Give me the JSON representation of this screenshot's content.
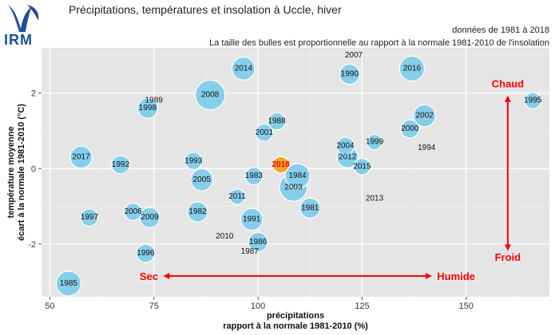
{
  "header": {
    "logo_text": "IRM",
    "title": "Précipitations, températures et insolation à Uccle, hiver",
    "subtitle_period": "données de 1981 à 2018",
    "subtitle_note": "La taille des bulles est proportionnelle au rapport à la normale 1981-2010 de l'insolation"
  },
  "colors": {
    "bubble": "#87ceeb",
    "highlight": "#f5a623",
    "annotation": "#ff0000",
    "panel": "#e5e5e5",
    "logo": "#1f4e9a"
  },
  "chart_data": {
    "type": "scatter",
    "xlabel": [
      "précipitations",
      "rapport à la normale 1981-2010 (%)"
    ],
    "ylabel": [
      "température moyenne",
      "écart à la normale 1981-2010 (°C)"
    ],
    "xlim": [
      48,
      170
    ],
    "ylim": [
      -3.4,
      3.2
    ],
    "xticks": [
      50,
      75,
      100,
      125,
      150
    ],
    "yticks": [
      -2,
      0,
      2
    ],
    "grid": true,
    "highlight_year": "2018",
    "points": [
      {
        "year": "1981",
        "x": 112.5,
        "y": -1.05,
        "size": 1.05
      },
      {
        "year": "1982",
        "x": 85.5,
        "y": -1.15,
        "size": 1.05
      },
      {
        "year": "1983",
        "x": 99,
        "y": -0.2,
        "size": 0.9
      },
      {
        "year": "1984",
        "x": 109.5,
        "y": -0.2,
        "size": 1.3
      },
      {
        "year": "1985",
        "x": 54.5,
        "y": -3.05,
        "size": 1.3
      },
      {
        "year": "1986",
        "x": 100,
        "y": -1.95,
        "size": 1.0
      },
      {
        "year": "1987",
        "x": 98,
        "y": -2.2,
        "size": 0.1
      },
      {
        "year": "1988",
        "x": 104.5,
        "y": 1.25,
        "size": 0.9
      },
      {
        "year": "1989",
        "x": 75,
        "y": 1.8,
        "size": 0.1
      },
      {
        "year": "1990",
        "x": 122,
        "y": 2.5,
        "size": 1.05
      },
      {
        "year": "1991",
        "x": 98.5,
        "y": -1.35,
        "size": 1.15
      },
      {
        "year": "1992",
        "x": 67,
        "y": 0.1,
        "size": 0.95
      },
      {
        "year": "1993",
        "x": 84.5,
        "y": 0.2,
        "size": 0.9
      },
      {
        "year": "1994",
        "x": 140.5,
        "y": 0.55,
        "size": 0.1
      },
      {
        "year": "1995",
        "x": 166,
        "y": 1.8,
        "size": 0.85
      },
      {
        "year": "1996",
        "x": 73,
        "y": -2.25,
        "size": 0.95
      },
      {
        "year": "1997",
        "x": 59.5,
        "y": -1.3,
        "size": 0.9
      },
      {
        "year": "1998",
        "x": 73.5,
        "y": 1.6,
        "size": 1.05
      },
      {
        "year": "1999",
        "x": 128,
        "y": 0.7,
        "size": 0.8
      },
      {
        "year": "2000",
        "x": 136.5,
        "y": 1.05,
        "size": 0.95
      },
      {
        "year": "2001",
        "x": 101.5,
        "y": 0.95,
        "size": 0.9
      },
      {
        "year": "2002",
        "x": 140,
        "y": 1.4,
        "size": 1.15
      },
      {
        "year": "2003",
        "x": 108.5,
        "y": -0.5,
        "size": 1.45
      },
      {
        "year": "2004",
        "x": 121,
        "y": 0.6,
        "size": 0.9
      },
      {
        "year": "2005",
        "x": 86.5,
        "y": -0.3,
        "size": 1.15
      },
      {
        "year": "2006",
        "x": 70,
        "y": -1.15,
        "size": 0.9
      },
      {
        "year": "2007",
        "x": 123,
        "y": 3.0,
        "size": 0.1
      },
      {
        "year": "2008",
        "x": 88.5,
        "y": 1.95,
        "size": 1.55
      },
      {
        "year": "2009",
        "x": 74,
        "y": -1.3,
        "size": 1.05
      },
      {
        "year": "2010",
        "x": 92,
        "y": -1.8,
        "size": 0.1
      },
      {
        "year": "2011",
        "x": 95,
        "y": -0.75,
        "size": 0.8
      },
      {
        "year": "2012",
        "x": 121.5,
        "y": 0.3,
        "size": 1.1
      },
      {
        "year": "2013",
        "x": 128,
        "y": -0.8,
        "size": 0.1
      },
      {
        "year": "2014",
        "x": 96.5,
        "y": 2.65,
        "size": 1.2
      },
      {
        "year": "2015",
        "x": 125,
        "y": 0.05,
        "size": 0.85
      },
      {
        "year": "2016",
        "x": 137,
        "y": 2.65,
        "size": 1.3
      },
      {
        "year": "2017",
        "x": 57.5,
        "y": 0.3,
        "size": 1.15
      },
      {
        "year": "2018",
        "x": 105.5,
        "y": 0.1,
        "size": 0.85
      }
    ],
    "annotations": {
      "chaud": "Chaud",
      "froid": "Froid",
      "sec": "Sec",
      "humide": "Humide"
    }
  }
}
